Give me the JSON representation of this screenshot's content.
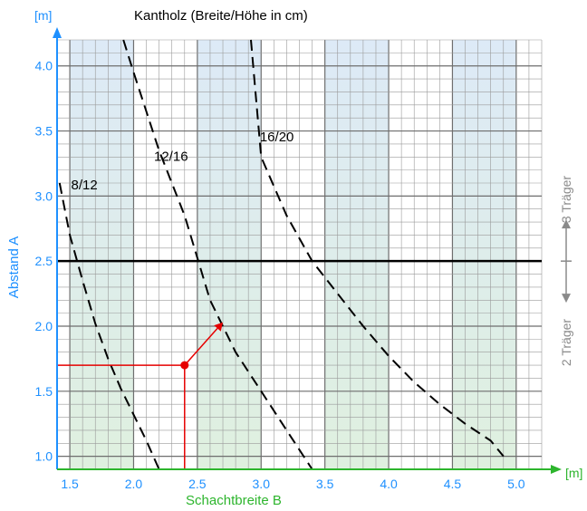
{
  "chart_data": {
    "type": "line",
    "title": "Kantholz (Breite/Höhe in cm)",
    "xlabel": "Schachtbreite B",
    "ylabel": "Abstand A",
    "x_unit": "[m]",
    "y_unit": "[m]",
    "xlim": [
      1.4,
      5.2
    ],
    "ylim": [
      0.9,
      4.2
    ],
    "x_ticks": [
      "1.5",
      "2.0",
      "2.5",
      "3.0",
      "3.5",
      "4.0",
      "4.5",
      "5.0"
    ],
    "y_ticks": [
      "1.0",
      "1.5",
      "2.0",
      "2.5",
      "3.0",
      "3.5",
      "4.0"
    ],
    "grid": true,
    "shaded_bands": [
      [
        1.5,
        2.0
      ],
      [
        2.5,
        3.0
      ],
      [
        3.5,
        4.0
      ],
      [
        4.5,
        5.0
      ]
    ],
    "threshold": {
      "y": 2.5,
      "label_above": "3 Träger",
      "label_below": "2 Träger"
    },
    "series": [
      {
        "name": "8/12",
        "x": [
          1.42,
          1.5,
          1.6,
          1.7,
          1.8,
          1.9,
          2.0,
          2.1,
          2.2
        ],
        "y": [
          3.1,
          2.7,
          2.35,
          2.02,
          1.75,
          1.52,
          1.32,
          1.12,
          0.9
        ]
      },
      {
        "name": "12/16",
        "x": [
          1.92,
          2.0,
          2.2,
          2.4,
          2.6,
          2.8,
          3.0,
          3.2,
          3.4
        ],
        "y": [
          4.2,
          3.95,
          3.35,
          2.85,
          2.2,
          1.8,
          1.5,
          1.2,
          0.9
        ]
      },
      {
        "name": "16/20",
        "x": [
          2.92,
          3.0,
          3.2,
          3.4,
          3.6,
          3.8,
          4.0,
          4.2,
          4.4,
          4.6,
          4.8,
          4.9
        ],
        "y": [
          4.2,
          3.3,
          2.85,
          2.5,
          2.25,
          2.0,
          1.77,
          1.57,
          1.4,
          1.25,
          1.12,
          1.0
        ]
      }
    ],
    "example_point": {
      "x": 2.4,
      "y": 1.7,
      "arrow_to": [
        2.7,
        2.03
      ]
    },
    "colors": {
      "axis_accent": "#1e90ff",
      "x_label": "#2db52d",
      "example": "#e60000",
      "band_top": "#ddeaf7",
      "band_bottom": "#dff0df",
      "grid": "#6e6e6e",
      "side_label": "#8a8a8a"
    }
  }
}
